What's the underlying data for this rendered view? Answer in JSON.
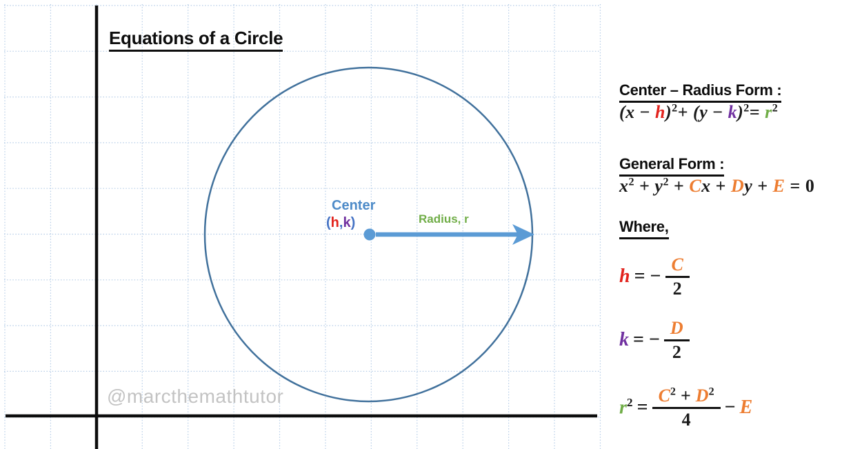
{
  "title": "Equations of a Circle",
  "watermark": "@marcthemathtutor",
  "diagram": {
    "center_label": "Center",
    "center_point": {
      "open": "(",
      "h": "h",
      "comma": ",",
      "k": "k",
      "close": ")"
    },
    "radius_label": "Radius, r"
  },
  "panel": {
    "center_radius_heading": "Center – Radius Form :",
    "f1": {
      "o1": "(",
      "x": "x",
      "m1": " − ",
      "h": "h",
      "c1": ")",
      "s1": "2",
      "p1": "+ ",
      "o2": "(",
      "y": "y",
      "m2": " − ",
      "k": "k",
      "c2": ")",
      "s2": "2",
      "e1": "= ",
      "r": "r",
      "s3": "2"
    },
    "general_heading": "General Form :",
    "f2": {
      "x": "x",
      "s1": "2",
      "p1": " + ",
      "y": "y",
      "s2": "2",
      "p2": " + ",
      "C": "C",
      "x2": "x",
      "p3": " + ",
      "D": "D",
      "y2": "y",
      "p4": " + ",
      "E": "E",
      "e1": " = ",
      "z": "0"
    },
    "where_heading": "Where,",
    "h_eq": {
      "lhs": "h",
      "rel": "= −",
      "num": "C",
      "den": "2"
    },
    "k_eq": {
      "lhs": "k",
      "rel": "= −",
      "num": "D",
      "den": "2"
    },
    "r_eq": {
      "lhs": "r",
      "lhs_sup": "2",
      "rel": "=",
      "num_c": "C",
      "num_cs": "2",
      "num_plus": "+",
      "num_d": "D",
      "num_ds": "2",
      "den": "4",
      "minus": "−",
      "e": "E"
    }
  },
  "colors": {
    "accent_blue": "#5B9BD5",
    "circle_outline": "#41719C",
    "paren_blue": "#4472C4",
    "h_red": "#E2231D",
    "k_purple": "#7030A0",
    "r_green": "#70AD47",
    "coefficient_orange": "#ED7D31",
    "grid_blue": "#B3CBE6",
    "axis_black": "#0D0D0D",
    "watermark_gray": "#C3C3C3"
  }
}
